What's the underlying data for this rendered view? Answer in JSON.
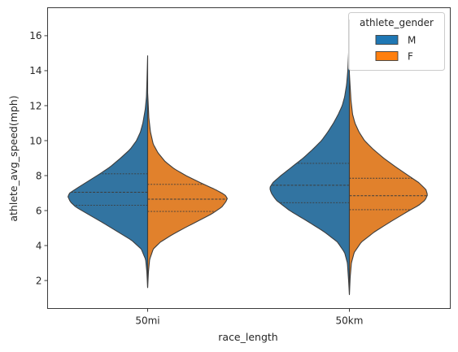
{
  "chart_data": {
    "type": "violin",
    "xlabel": "race_length",
    "ylabel": "athlete_avg_speed(mph)",
    "categories": [
      "50mi",
      "50km"
    ],
    "ylim": [
      0.4,
      17.6
    ],
    "yticks": [
      2,
      4,
      6,
      8,
      10,
      12,
      14,
      16
    ],
    "grid": false,
    "split": true,
    "inner": "quartile",
    "legend": {
      "title": "athlete_gender",
      "position": "top-right",
      "entries": [
        {
          "label": "M",
          "color": "#1f77b4"
        },
        {
          "label": "F",
          "color": "#ff7f0e"
        }
      ]
    },
    "series": [
      {
        "name": "M",
        "color": "#3274a1",
        "side": "left",
        "violins": [
          {
            "category": "50mi",
            "quartiles": [
              6.3,
              7.05,
              8.1
            ],
            "profile": [
              [
                1.6,
                0
              ],
              [
                2.5,
                0.01
              ],
              [
                3.2,
                0.025
              ],
              [
                3.8,
                0.08
              ],
              [
                4.3,
                0.2
              ],
              [
                4.8,
                0.38
              ],
              [
                5.3,
                0.56
              ],
              [
                5.8,
                0.75
              ],
              [
                6.2,
                0.9
              ],
              [
                6.5,
                0.97
              ],
              [
                6.8,
                1.0
              ],
              [
                7.0,
                0.98
              ],
              [
                7.3,
                0.88
              ],
              [
                7.7,
                0.74
              ],
              [
                8.1,
                0.6
              ],
              [
                8.5,
                0.47
              ],
              [
                9.0,
                0.34
              ],
              [
                9.5,
                0.22
              ],
              [
                10.0,
                0.14
              ],
              [
                10.5,
                0.09
              ],
              [
                11.0,
                0.06
              ],
              [
                11.8,
                0.03
              ],
              [
                12.5,
                0.015
              ],
              [
                13.5,
                0.008
              ],
              [
                14.85,
                0
              ]
            ]
          },
          {
            "category": "50km",
            "quartiles": [
              6.45,
              7.45,
              8.7
            ],
            "profile": [
              [
                1.2,
                0
              ],
              [
                2.0,
                0.01
              ],
              [
                3.0,
                0.025
              ],
              [
                3.6,
                0.06
              ],
              [
                4.2,
                0.15
              ],
              [
                4.8,
                0.32
              ],
              [
                5.4,
                0.53
              ],
              [
                6.0,
                0.75
              ],
              [
                6.6,
                0.92
              ],
              [
                7.0,
                0.98
              ],
              [
                7.3,
                1.0
              ],
              [
                7.6,
                0.96
              ],
              [
                8.0,
                0.86
              ],
              [
                8.5,
                0.72
              ],
              [
                9.0,
                0.58
              ],
              [
                9.5,
                0.46
              ],
              [
                10.0,
                0.35
              ],
              [
                10.5,
                0.27
              ],
              [
                11.0,
                0.2
              ],
              [
                11.5,
                0.14
              ],
              [
                12.0,
                0.09
              ],
              [
                12.5,
                0.06
              ],
              [
                13.2,
                0.035
              ],
              [
                14.0,
                0.02
              ],
              [
                15.0,
                0.01
              ],
              [
                16.9,
                0
              ]
            ]
          }
        ]
      },
      {
        "name": "F",
        "color": "#e1812c",
        "side": "right",
        "violins": [
          {
            "category": "50mi",
            "quartiles": [
              5.95,
              6.65,
              7.5
            ],
            "profile": [
              [
                1.6,
                0
              ],
              [
                2.5,
                0.01
              ],
              [
                3.2,
                0.025
              ],
              [
                3.8,
                0.07
              ],
              [
                4.2,
                0.16
              ],
              [
                4.6,
                0.3
              ],
              [
                5.0,
                0.46
              ],
              [
                5.4,
                0.63
              ],
              [
                5.8,
                0.8
              ],
              [
                6.2,
                0.93
              ],
              [
                6.5,
                0.98
              ],
              [
                6.7,
                1.0
              ],
              [
                6.9,
                0.97
              ],
              [
                7.2,
                0.85
              ],
              [
                7.6,
                0.66
              ],
              [
                8.0,
                0.48
              ],
              [
                8.4,
                0.33
              ],
              [
                8.8,
                0.22
              ],
              [
                9.3,
                0.13
              ],
              [
                9.8,
                0.07
              ],
              [
                10.5,
                0.035
              ],
              [
                11.3,
                0.015
              ],
              [
                12.3,
                0.005
              ],
              [
                12.7,
                0
              ]
            ]
          },
          {
            "category": "50km",
            "quartiles": [
              6.05,
              6.85,
              7.85
            ],
            "profile": [
              [
                1.2,
                0
              ],
              [
                2.2,
                0.01
              ],
              [
                3.0,
                0.025
              ],
              [
                3.6,
                0.06
              ],
              [
                4.2,
                0.15
              ],
              [
                4.8,
                0.32
              ],
              [
                5.4,
                0.53
              ],
              [
                6.0,
                0.75
              ],
              [
                6.3,
                0.87
              ],
              [
                6.6,
                0.95
              ],
              [
                6.9,
                0.98
              ],
              [
                7.2,
                0.96
              ],
              [
                7.6,
                0.87
              ],
              [
                8.0,
                0.74
              ],
              [
                8.5,
                0.58
              ],
              [
                9.0,
                0.43
              ],
              [
                9.5,
                0.3
              ],
              [
                10.0,
                0.19
              ],
              [
                10.5,
                0.12
              ],
              [
                11.0,
                0.07
              ],
              [
                11.5,
                0.04
              ],
              [
                12.3,
                0.02
              ],
              [
                13.2,
                0.008
              ],
              [
                13.8,
                0
              ]
            ]
          }
        ]
      }
    ]
  }
}
